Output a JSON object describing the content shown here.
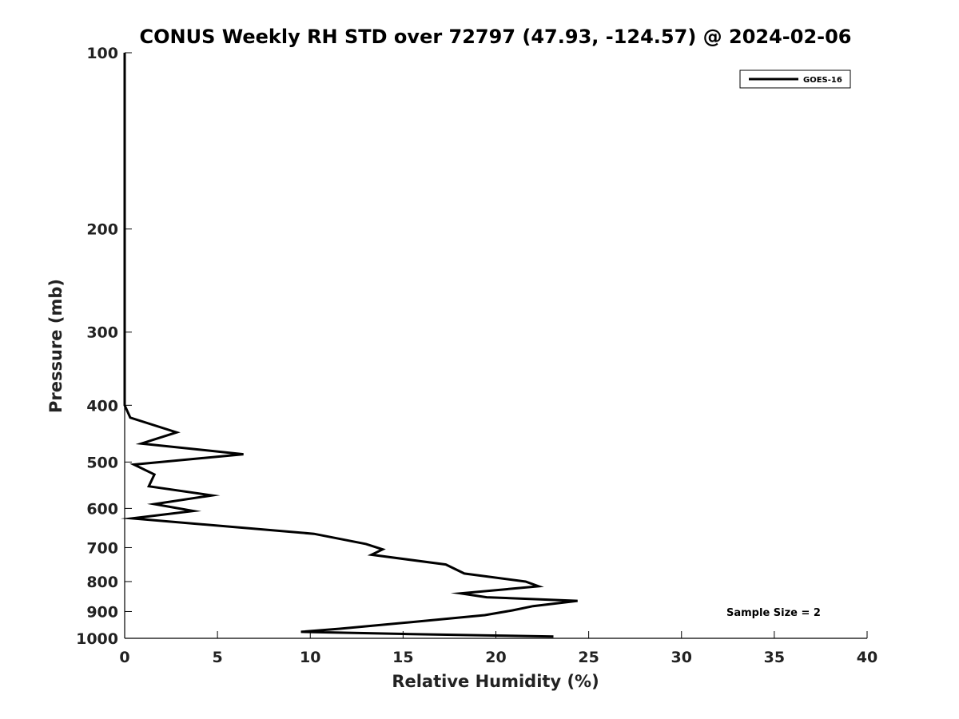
{
  "chart_data": {
    "type": "line",
    "title": "CONUS Weekly RH STD over 72797 (47.93, -124.57) @ 2024-02-06",
    "xlabel": "Relative Humidity (%)",
    "ylabel": "Pressure (mb)",
    "xlim": [
      0,
      40
    ],
    "ylim": [
      100,
      1000
    ],
    "y_scale": "log",
    "y_inverted": true,
    "x_ticks": [
      "0",
      "5",
      "10",
      "15",
      "20",
      "25",
      "30",
      "35",
      "40"
    ],
    "y_ticks": [
      "100",
      "200",
      "300",
      "400",
      "500",
      "600",
      "700",
      "800",
      "900",
      "1000"
    ],
    "grid": false,
    "legend_position": "top-right",
    "annotation": "Sample Size = 2",
    "series": [
      {
        "name": "GOES-16",
        "color": "#000000",
        "points": [
          [
            0,
            100
          ],
          [
            0,
            150
          ],
          [
            0,
            200
          ],
          [
            0,
            250
          ],
          [
            0,
            300
          ],
          [
            0,
            350
          ],
          [
            0,
            400
          ],
          [
            0.3,
            420
          ],
          [
            2.8,
            445
          ],
          [
            0.9,
            465
          ],
          [
            6.4,
            485
          ],
          [
            0.5,
            505
          ],
          [
            1.6,
            525
          ],
          [
            1.3,
            550
          ],
          [
            4.7,
            570
          ],
          [
            1.6,
            590
          ],
          [
            3.7,
            606
          ],
          [
            0.4,
            624
          ],
          [
            10.2,
            663
          ],
          [
            13.0,
            690
          ],
          [
            13.9,
            705
          ],
          [
            13.3,
            720
          ],
          [
            17.3,
            748
          ],
          [
            18.3,
            775
          ],
          [
            21.6,
            800
          ],
          [
            22.3,
            815
          ],
          [
            18.1,
            838
          ],
          [
            19.5,
            851
          ],
          [
            24.4,
            863
          ],
          [
            22.0,
            881
          ],
          [
            20.9,
            896
          ],
          [
            19.4,
            913
          ],
          [
            15.5,
            938
          ],
          [
            11.6,
            963
          ],
          [
            9.5,
            975
          ],
          [
            15.0,
            983
          ],
          [
            19.9,
            989
          ],
          [
            23.1,
            993
          ]
        ]
      }
    ]
  }
}
